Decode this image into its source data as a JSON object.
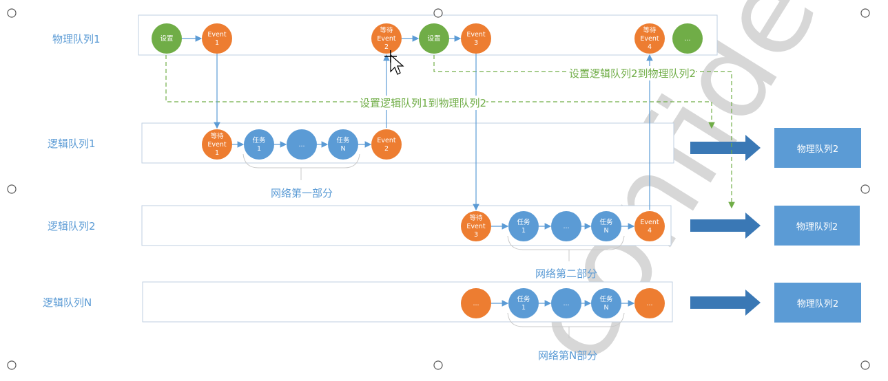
{
  "rows": [
    {
      "label": "物理队列1"
    },
    {
      "label": "逻辑队列1"
    },
    {
      "label": "逻辑队列2"
    },
    {
      "label": "逻辑队列N"
    }
  ],
  "targets": [
    {
      "label": "物理队列2"
    },
    {
      "label": "物理队列2"
    },
    {
      "label": "物理队列2"
    }
  ],
  "groups": [
    {
      "label": "网络第一部分"
    },
    {
      "label": "网络第二部分"
    },
    {
      "label": "网络第N部分"
    }
  ],
  "dashed_links": [
    {
      "label": "设置逻辑队列1到物理队列2"
    },
    {
      "label": "设置逻辑队列2到物理队列2"
    }
  ],
  "nodes": {
    "physical": [
      {
        "kind": "green",
        "lines": [
          "设置"
        ]
      },
      {
        "kind": "orange",
        "lines": [
          "Event",
          "1"
        ]
      },
      {
        "kind": "orange",
        "lines": [
          "等待",
          "Event",
          "2"
        ]
      },
      {
        "kind": "green",
        "lines": [
          "设置"
        ]
      },
      {
        "kind": "orange",
        "lines": [
          "Event",
          "3"
        ]
      },
      {
        "kind": "orange",
        "lines": [
          "等待",
          "Event",
          "4"
        ]
      },
      {
        "kind": "green",
        "lines": [
          "..."
        ]
      }
    ],
    "logical1": [
      {
        "kind": "orange",
        "lines": [
          "等待",
          "Event",
          "1"
        ]
      },
      {
        "kind": "blue",
        "lines": [
          "任务",
          "1"
        ]
      },
      {
        "kind": "blue",
        "lines": [
          "..."
        ]
      },
      {
        "kind": "blue",
        "lines": [
          "任务",
          "N"
        ]
      },
      {
        "kind": "orange",
        "lines": [
          "Event",
          "2"
        ]
      }
    ],
    "logical2": [
      {
        "kind": "orange",
        "lines": [
          "等待",
          "Event",
          "3"
        ]
      },
      {
        "kind": "blue",
        "lines": [
          "任务",
          "1"
        ]
      },
      {
        "kind": "blue",
        "lines": [
          "..."
        ]
      },
      {
        "kind": "blue",
        "lines": [
          "任务",
          "N"
        ]
      },
      {
        "kind": "orange",
        "lines": [
          "Event",
          "4"
        ]
      }
    ],
    "logicalN": [
      {
        "kind": "orange",
        "lines": [
          "..."
        ]
      },
      {
        "kind": "blue",
        "lines": [
          "任务",
          "1"
        ]
      },
      {
        "kind": "blue",
        "lines": [
          "..."
        ]
      },
      {
        "kind": "blue",
        "lines": [
          "任务",
          "N"
        ]
      },
      {
        "kind": "orange",
        "lines": [
          "..."
        ]
      }
    ]
  },
  "colors": {
    "green": "#70ad47",
    "orange": "#ed7d31",
    "blue": "#5b9bd5",
    "panel_border": "#bfcfe0",
    "dashed": "#70ad47"
  },
  "watermark": "confidential"
}
